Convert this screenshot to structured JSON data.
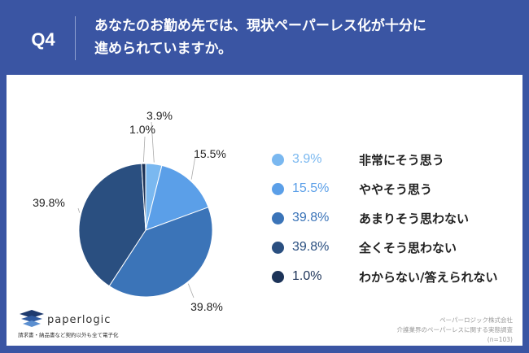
{
  "header": {
    "q_number": "Q4",
    "title_line1": "あなたのお勤め先では、現状ペーパーレス化が十分に",
    "title_line2": "進められていますか。"
  },
  "chart_data": {
    "type": "pie",
    "start": "top, clockwise",
    "slices": [
      {
        "label": "非常にそう思う",
        "value": 3.9,
        "value_label": "3.9%",
        "color": "#7ab8f0"
      },
      {
        "label": "ややそう思う",
        "value": 15.5,
        "value_label": "15.5%",
        "color": "#5b9fe8"
      },
      {
        "label": "あまりそう思わない",
        "value": 39.8,
        "value_label": "39.8%",
        "color": "#3b74b8"
      },
      {
        "label": "全くそう思わない",
        "value": 39.8,
        "value_label": "39.8%",
        "color": "#2a4f80"
      },
      {
        "label": "わからない/答えられない",
        "value": 1.0,
        "value_label": "1.0%",
        "color": "#1c3358"
      }
    ],
    "legend": "right"
  },
  "footer": {
    "brand": "paperlogic",
    "tagline": "請求書・納品書など契約以外も全て電子化",
    "source_line1": "ペーパーロジック株式会社",
    "source_line2": "介護業界のペーパーレスに関する実態調査",
    "sample": "(n=103)"
  }
}
